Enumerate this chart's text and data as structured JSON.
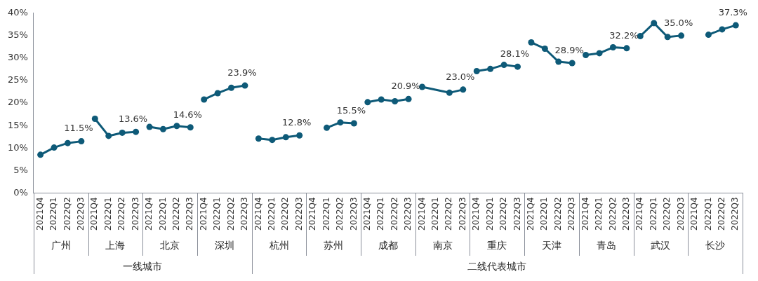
{
  "chart_data": {
    "type": "line",
    "categories": [
      "2021Q4",
      "2022Q1",
      "2022Q2",
      "2022Q3",
      "2021Q4",
      "2022Q1",
      "2022Q2",
      "2022Q3",
      "2021Q4",
      "2022Q1",
      "2022Q2",
      "2022Q3",
      "2021Q4",
      "2022Q1",
      "2022Q2",
      "2022Q3",
      "2021Q4",
      "2022Q1",
      "2022Q2",
      "2022Q3",
      "2021Q4",
      "2022Q1",
      "2022Q2",
      "2022Q3",
      "2021Q4",
      "2022Q1",
      "2022Q2",
      "2022Q3",
      "2021Q4",
      "2022Q1",
      "2022Q2",
      "2022Q3",
      "2021Q4",
      "2022Q1",
      "2022Q2",
      "2022Q3",
      "2021Q4",
      "2022Q1",
      "2022Q2",
      "2022Q3",
      "2021Q4",
      "2022Q1",
      "2022Q2",
      "2022Q3",
      "2021Q4",
      "2022Q1",
      "2022Q2",
      "2022Q3",
      "2021Q4",
      "2022Q1",
      "2022Q2",
      "2022Q3"
    ],
    "series": [
      {
        "color": "#0e5a78",
        "values": [
          8.5,
          10.1,
          11.1,
          11.5,
          null,
          null,
          null,
          null,
          null,
          null,
          null,
          null,
          null,
          null,
          null,
          null,
          null,
          null,
          null,
          null,
          null,
          null,
          null,
          null,
          null,
          null,
          null,
          null,
          null,
          null,
          null,
          null,
          null,
          null,
          null,
          null,
          null,
          null,
          null,
          null,
          null,
          null,
          null,
          null,
          null,
          null,
          null,
          null,
          null,
          null,
          null,
          null
        ],
        "value_labels": [
          null,
          null,
          null,
          "11.5%",
          null,
          null,
          null,
          null,
          null,
          null,
          null,
          null,
          null,
          null,
          null,
          null,
          null,
          null,
          null,
          null,
          null,
          null,
          null,
          null,
          null,
          null,
          null,
          null,
          null,
          null,
          null,
          null,
          null,
          null,
          null,
          null,
          null,
          null,
          null,
          null,
          null,
          null,
          null,
          null,
          null,
          null,
          null,
          null,
          null,
          null,
          null,
          null
        ]
      },
      {
        "color": "#0e5a78",
        "values": [
          null,
          null,
          null,
          null,
          16.5,
          12.7,
          13.4,
          13.6,
          null,
          null,
          null,
          null,
          null,
          null,
          null,
          null,
          null,
          null,
          null,
          null,
          null,
          null,
          null,
          null,
          null,
          null,
          null,
          null,
          null,
          null,
          null,
          null,
          null,
          null,
          null,
          null,
          null,
          null,
          null,
          null,
          null,
          null,
          null,
          null,
          null,
          null,
          null,
          null,
          null,
          null,
          null,
          null
        ],
        "value_labels": [
          null,
          null,
          null,
          null,
          null,
          null,
          null,
          "13.6%",
          null,
          null,
          null,
          null,
          null,
          null,
          null,
          null,
          null,
          null,
          null,
          null,
          null,
          null,
          null,
          null,
          null,
          null,
          null,
          null,
          null,
          null,
          null,
          null,
          null,
          null,
          null,
          null,
          null,
          null,
          null,
          null,
          null,
          null,
          null,
          null,
          null,
          null,
          null,
          null,
          null,
          null,
          null,
          null
        ]
      },
      {
        "color": "#0e5a78",
        "values": [
          null,
          null,
          null,
          null,
          null,
          null,
          null,
          null,
          14.7,
          14.2,
          14.9,
          14.6,
          null,
          null,
          null,
          null,
          null,
          null,
          null,
          null,
          null,
          null,
          null,
          null,
          null,
          null,
          null,
          null,
          null,
          null,
          null,
          null,
          null,
          null,
          null,
          null,
          null,
          null,
          null,
          null,
          null,
          null,
          null,
          null,
          null,
          null,
          null,
          null,
          null,
          null,
          null,
          null
        ],
        "value_labels": [
          null,
          null,
          null,
          null,
          null,
          null,
          null,
          null,
          null,
          null,
          null,
          "14.6%",
          null,
          null,
          null,
          null,
          null,
          null,
          null,
          null,
          null,
          null,
          null,
          null,
          null,
          null,
          null,
          null,
          null,
          null,
          null,
          null,
          null,
          null,
          null,
          null,
          null,
          null,
          null,
          null,
          null,
          null,
          null,
          null,
          null,
          null,
          null,
          null,
          null,
          null,
          null,
          null
        ]
      },
      {
        "color": "#0e5a78",
        "values": [
          null,
          null,
          null,
          null,
          null,
          null,
          null,
          null,
          null,
          null,
          null,
          null,
          20.8,
          22.2,
          23.4,
          23.9,
          null,
          null,
          null,
          null,
          null,
          null,
          null,
          null,
          null,
          null,
          null,
          null,
          null,
          null,
          null,
          null,
          null,
          null,
          null,
          null,
          null,
          null,
          null,
          null,
          null,
          null,
          null,
          null,
          null,
          null,
          null,
          null,
          null,
          null,
          null,
          null
        ],
        "value_labels": [
          null,
          null,
          null,
          null,
          null,
          null,
          null,
          null,
          null,
          null,
          null,
          null,
          null,
          null,
          null,
          "23.9%",
          null,
          null,
          null,
          null,
          null,
          null,
          null,
          null,
          null,
          null,
          null,
          null,
          null,
          null,
          null,
          null,
          null,
          null,
          null,
          null,
          null,
          null,
          null,
          null,
          null,
          null,
          null,
          null,
          null,
          null,
          null,
          null,
          null,
          null,
          null,
          null
        ]
      },
      {
        "color": "#0e5a78",
        "values": [
          null,
          null,
          null,
          null,
          null,
          null,
          null,
          null,
          null,
          null,
          null,
          null,
          null,
          null,
          null,
          null,
          12.1,
          11.8,
          12.4,
          12.8,
          null,
          null,
          null,
          null,
          null,
          null,
          null,
          null,
          null,
          null,
          null,
          null,
          null,
          null,
          null,
          null,
          null,
          null,
          null,
          null,
          null,
          null,
          null,
          null,
          null,
          null,
          null,
          null,
          null,
          null,
          null,
          null
        ],
        "value_labels": [
          null,
          null,
          null,
          null,
          null,
          null,
          null,
          null,
          null,
          null,
          null,
          null,
          null,
          null,
          null,
          null,
          null,
          null,
          null,
          "12.8%",
          null,
          null,
          null,
          null,
          null,
          null,
          null,
          null,
          null,
          null,
          null,
          null,
          null,
          null,
          null,
          null,
          null,
          null,
          null,
          null,
          null,
          null,
          null,
          null,
          null,
          null,
          null,
          null,
          null,
          null,
          null,
          null
        ]
      },
      {
        "color": "#0e5a78",
        "values": [
          null,
          null,
          null,
          null,
          null,
          null,
          null,
          null,
          null,
          null,
          null,
          null,
          null,
          null,
          null,
          null,
          null,
          null,
          null,
          null,
          null,
          14.5,
          15.7,
          15.5,
          null,
          null,
          null,
          null,
          null,
          null,
          null,
          null,
          null,
          null,
          null,
          null,
          null,
          null,
          null,
          null,
          null,
          null,
          null,
          null,
          null,
          null,
          null,
          null,
          null,
          null,
          null,
          null
        ],
        "value_labels": [
          null,
          null,
          null,
          null,
          null,
          null,
          null,
          null,
          null,
          null,
          null,
          null,
          null,
          null,
          null,
          null,
          null,
          null,
          null,
          null,
          null,
          null,
          null,
          "15.5%",
          null,
          null,
          null,
          null,
          null,
          null,
          null,
          null,
          null,
          null,
          null,
          null,
          null,
          null,
          null,
          null,
          null,
          null,
          null,
          null,
          null,
          null,
          null,
          null,
          null,
          null,
          null,
          null
        ]
      },
      {
        "color": "#0e5a78",
        "values": [
          null,
          null,
          null,
          null,
          null,
          null,
          null,
          null,
          null,
          null,
          null,
          null,
          null,
          null,
          null,
          null,
          null,
          null,
          null,
          null,
          null,
          null,
          null,
          null,
          20.2,
          20.8,
          20.4,
          20.9,
          null,
          null,
          null,
          null,
          null,
          null,
          null,
          null,
          null,
          null,
          null,
          null,
          null,
          null,
          null,
          null,
          null,
          null,
          null,
          null,
          null,
          null,
          null,
          null
        ],
        "value_labels": [
          null,
          null,
          null,
          null,
          null,
          null,
          null,
          null,
          null,
          null,
          null,
          null,
          null,
          null,
          null,
          null,
          null,
          null,
          null,
          null,
          null,
          null,
          null,
          null,
          null,
          null,
          null,
          "20.9%",
          null,
          null,
          null,
          null,
          null,
          null,
          null,
          null,
          null,
          null,
          null,
          null,
          null,
          null,
          null,
          null,
          null,
          null,
          null,
          null,
          null,
          null,
          null,
          null
        ]
      },
      {
        "color": "#0e5a78",
        "values": [
          null,
          null,
          null,
          null,
          null,
          null,
          null,
          null,
          null,
          null,
          null,
          null,
          null,
          null,
          null,
          null,
          null,
          null,
          null,
          null,
          null,
          null,
          null,
          null,
          null,
          null,
          null,
          null,
          23.6,
          null,
          22.3,
          23.0,
          null,
          null,
          null,
          null,
          null,
          null,
          null,
          null,
          null,
          null,
          null,
          null,
          null,
          null,
          null,
          null,
          null,
          null,
          null,
          null
        ],
        "value_labels": [
          null,
          null,
          null,
          null,
          null,
          null,
          null,
          null,
          null,
          null,
          null,
          null,
          null,
          null,
          null,
          null,
          null,
          null,
          null,
          null,
          null,
          null,
          null,
          null,
          null,
          null,
          null,
          null,
          null,
          null,
          null,
          "23.0%",
          null,
          null,
          null,
          null,
          null,
          null,
          null,
          null,
          null,
          null,
          null,
          null,
          null,
          null,
          null,
          null,
          null,
          null,
          null,
          null
        ]
      },
      {
        "color": "#0e5a78",
        "values": [
          null,
          null,
          null,
          null,
          null,
          null,
          null,
          null,
          null,
          null,
          null,
          null,
          null,
          null,
          null,
          null,
          null,
          null,
          null,
          null,
          null,
          null,
          null,
          null,
          null,
          null,
          null,
          null,
          null,
          null,
          null,
          null,
          27.1,
          27.6,
          28.5,
          28.1,
          null,
          null,
          null,
          null,
          null,
          null,
          null,
          null,
          null,
          null,
          null,
          null,
          null,
          null,
          null,
          null
        ],
        "value_labels": [
          null,
          null,
          null,
          null,
          null,
          null,
          null,
          null,
          null,
          null,
          null,
          null,
          null,
          null,
          null,
          null,
          null,
          null,
          null,
          null,
          null,
          null,
          null,
          null,
          null,
          null,
          null,
          null,
          null,
          null,
          null,
          null,
          null,
          null,
          null,
          "28.1%",
          null,
          null,
          null,
          null,
          null,
          null,
          null,
          null,
          null,
          null,
          null,
          null,
          null,
          null,
          null,
          null
        ]
      },
      {
        "color": "#0e5a78",
        "values": [
          null,
          null,
          null,
          null,
          null,
          null,
          null,
          null,
          null,
          null,
          null,
          null,
          null,
          null,
          null,
          null,
          null,
          null,
          null,
          null,
          null,
          null,
          null,
          null,
          null,
          null,
          null,
          null,
          null,
          null,
          null,
          null,
          null,
          null,
          null,
          null,
          33.5,
          32.1,
          29.2,
          28.9,
          null,
          null,
          null,
          null,
          null,
          null,
          null,
          null,
          null,
          null,
          null,
          null
        ],
        "value_labels": [
          null,
          null,
          null,
          null,
          null,
          null,
          null,
          null,
          null,
          null,
          null,
          null,
          null,
          null,
          null,
          null,
          null,
          null,
          null,
          null,
          null,
          null,
          null,
          null,
          null,
          null,
          null,
          null,
          null,
          null,
          null,
          null,
          null,
          null,
          null,
          null,
          null,
          null,
          null,
          "28.9%",
          null,
          null,
          null,
          null,
          null,
          null,
          null,
          null,
          null,
          null,
          null,
          null
        ]
      },
      {
        "color": "#0e5a78",
        "values": [
          null,
          null,
          null,
          null,
          null,
          null,
          null,
          null,
          null,
          null,
          null,
          null,
          null,
          null,
          null,
          null,
          null,
          null,
          null,
          null,
          null,
          null,
          null,
          null,
          null,
          null,
          null,
          null,
          null,
          null,
          null,
          null,
          null,
          null,
          null,
          null,
          null,
          null,
          null,
          null,
          30.7,
          31.1,
          32.4,
          32.2,
          null,
          null,
          null,
          null,
          null,
          null,
          null,
          null
        ],
        "value_labels": [
          null,
          null,
          null,
          null,
          null,
          null,
          null,
          null,
          null,
          null,
          null,
          null,
          null,
          null,
          null,
          null,
          null,
          null,
          null,
          null,
          null,
          null,
          null,
          null,
          null,
          null,
          null,
          null,
          null,
          null,
          null,
          null,
          null,
          null,
          null,
          null,
          null,
          null,
          null,
          null,
          null,
          null,
          null,
          "32.2%",
          null,
          null,
          null,
          null,
          null,
          null,
          null,
          null
        ]
      },
      {
        "color": "#0e5a78",
        "values": [
          null,
          null,
          null,
          null,
          null,
          null,
          null,
          null,
          null,
          null,
          null,
          null,
          null,
          null,
          null,
          null,
          null,
          null,
          null,
          null,
          null,
          null,
          null,
          null,
          null,
          null,
          null,
          null,
          null,
          null,
          null,
          null,
          null,
          null,
          null,
          null,
          null,
          null,
          null,
          null,
          null,
          null,
          null,
          null,
          34.9,
          37.8,
          34.7,
          35.0,
          null,
          null,
          null,
          null
        ],
        "value_labels": [
          null,
          null,
          null,
          null,
          null,
          null,
          null,
          null,
          null,
          null,
          null,
          null,
          null,
          null,
          null,
          null,
          null,
          null,
          null,
          null,
          null,
          null,
          null,
          null,
          null,
          null,
          null,
          null,
          null,
          null,
          null,
          null,
          null,
          null,
          null,
          null,
          null,
          null,
          null,
          null,
          null,
          null,
          null,
          null,
          null,
          null,
          null,
          "35.0%",
          null,
          null,
          null,
          null
        ]
      },
      {
        "color": "#0e5a78",
        "values": [
          null,
          null,
          null,
          null,
          null,
          null,
          null,
          null,
          null,
          null,
          null,
          null,
          null,
          null,
          null,
          null,
          null,
          null,
          null,
          null,
          null,
          null,
          null,
          null,
          null,
          null,
          null,
          null,
          null,
          null,
          null,
          null,
          null,
          null,
          null,
          null,
          null,
          null,
          null,
          null,
          null,
          null,
          null,
          null,
          null,
          null,
          null,
          null,
          null,
          35.2,
          36.4,
          37.3
        ],
        "value_labels": [
          null,
          null,
          null,
          null,
          null,
          null,
          null,
          null,
          null,
          null,
          null,
          null,
          null,
          null,
          null,
          null,
          null,
          null,
          null,
          null,
          null,
          null,
          null,
          null,
          null,
          null,
          null,
          null,
          null,
          null,
          null,
          null,
          null,
          null,
          null,
          null,
          null,
          null,
          null,
          null,
          null,
          null,
          null,
          null,
          null,
          null,
          null,
          null,
          null,
          null,
          null,
          "37.3%"
        ]
      }
    ],
    "annotations": [
      "广州",
      "上海",
      "北京",
      "深圳",
      "杭州",
      "苏州",
      "成都",
      "南京",
      "重庆",
      "天津",
      "青岛",
      "武汉",
      "长沙",
      "一线城市",
      "二线代表城市"
    ],
    "ylim": [
      0,
      40
    ],
    "yticks": [
      {
        "value": 0,
        "label": "0%"
      },
      {
        "value": 5,
        "label": "5%"
      },
      {
        "value": 10,
        "label": "10%"
      },
      {
        "value": 15,
        "label": "15%"
      },
      {
        "value": 20,
        "label": "20%"
      },
      {
        "value": 25,
        "label": "25%"
      },
      {
        "value": 30,
        "label": "30%"
      },
      {
        "value": 35,
        "label": "35%"
      },
      {
        "value": 40,
        "label": "40%"
      }
    ],
    "grid": false,
    "legend": false,
    "marker": "circle",
    "line_style": "solid"
  }
}
